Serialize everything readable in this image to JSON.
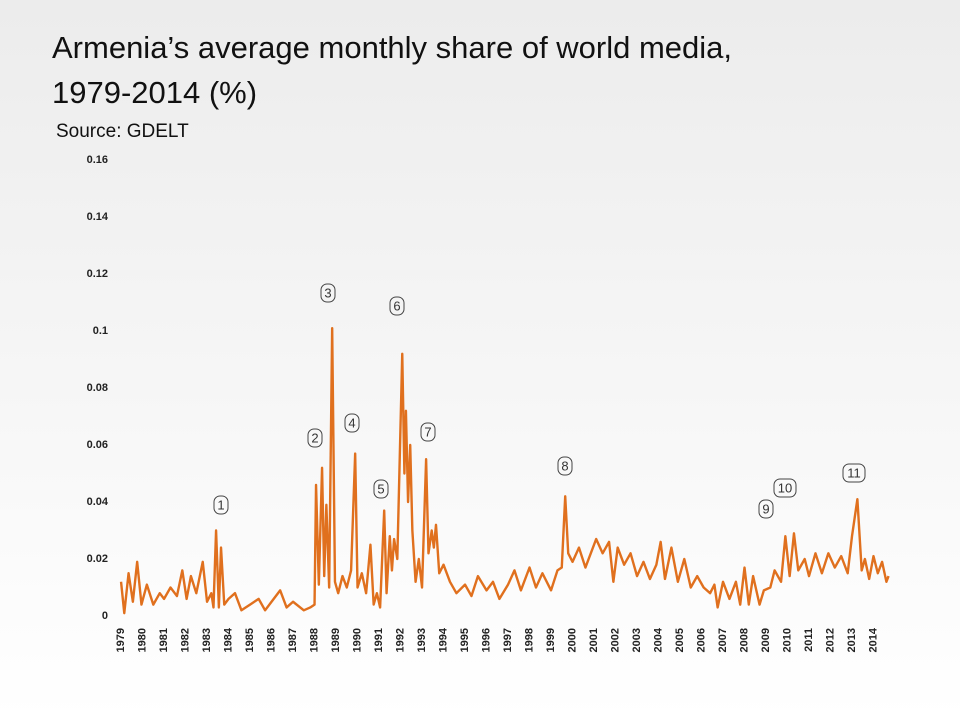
{
  "chart_data": {
    "type": "line",
    "title": [
      "Armenia’s average monthly share of world media,",
      "1979-2014 (%)"
    ],
    "subtitle": "Source: GDELT",
    "color": "#e0701e",
    "grid": false,
    "xlim": [
      1978.5,
      2015
    ],
    "ylim": [
      0,
      0.16
    ],
    "yticks": [
      0,
      0.02,
      0.04,
      0.06,
      0.08,
      0.1,
      0.12,
      0.14,
      0.16
    ],
    "xticks": [
      1979,
      1980,
      1981,
      1982,
      1983,
      1984,
      1985,
      1986,
      1987,
      1988,
      1989,
      1990,
      1991,
      1992,
      1993,
      1994,
      1995,
      1996,
      1997,
      1998,
      1999,
      2000,
      2001,
      2002,
      2003,
      2004,
      2005,
      2006,
      2007,
      2008,
      2009,
      2010,
      2011,
      2012,
      2013,
      2014
    ],
    "annotations": [
      "1",
      "2",
      "3",
      "4",
      "5",
      "6",
      "7",
      "8",
      "9",
      "10",
      "11"
    ],
    "x": [
      1979.0,
      1979.15,
      1979.35,
      1979.55,
      1979.75,
      1979.95,
      1980.2,
      1980.5,
      1980.8,
      1981.0,
      1981.3,
      1981.6,
      1981.85,
      1982.05,
      1982.25,
      1982.5,
      1982.8,
      1983.0,
      1983.2,
      1983.3,
      1983.42,
      1983.55,
      1983.65,
      1983.8,
      1984.0,
      1984.3,
      1984.6,
      1985.0,
      1985.4,
      1985.7,
      1986.0,
      1986.4,
      1986.7,
      1987.0,
      1987.5,
      1987.8,
      1988.0,
      1988.07,
      1988.2,
      1988.35,
      1988.45,
      1988.55,
      1988.68,
      1988.82,
      1988.95,
      1989.1,
      1989.3,
      1989.5,
      1989.7,
      1989.89,
      1990.0,
      1990.2,
      1990.4,
      1990.6,
      1990.75,
      1990.9,
      1991.05,
      1991.24,
      1991.35,
      1991.5,
      1991.6,
      1991.7,
      1991.85,
      1992.08,
      1992.18,
      1992.25,
      1992.35,
      1992.45,
      1992.55,
      1992.7,
      1992.85,
      1993.0,
      1993.19,
      1993.3,
      1993.45,
      1993.55,
      1993.65,
      1993.8,
      1994.0,
      1994.3,
      1994.6,
      1995.0,
      1995.3,
      1995.6,
      1996.0,
      1996.3,
      1996.6,
      1997.0,
      1997.3,
      1997.6,
      1998.0,
      1998.3,
      1998.6,
      1999.0,
      1999.3,
      1999.5,
      1999.66,
      1999.8,
      2000.0,
      2000.3,
      2000.6,
      2000.9,
      2001.1,
      2001.4,
      2001.7,
      2001.9,
      2002.1,
      2002.4,
      2002.7,
      2003.0,
      2003.3,
      2003.6,
      2003.9,
      2004.1,
      2004.3,
      2004.6,
      2004.9,
      2005.2,
      2005.5,
      2005.8,
      2006.1,
      2006.4,
      2006.6,
      2006.75,
      2007.0,
      2007.3,
      2007.6,
      2007.8,
      2008.0,
      2008.2,
      2008.4,
      2008.7,
      2008.9,
      2009.2,
      2009.4,
      2009.7,
      2009.9,
      2010.1,
      2010.3,
      2010.5,
      2010.8,
      2011.0,
      2011.3,
      2011.6,
      2011.9,
      2012.2,
      2012.5,
      2012.8,
      2013.0,
      2013.25,
      2013.45,
      2013.6,
      2013.8,
      2014.0,
      2014.2,
      2014.4,
      2014.6,
      2014.7
    ],
    "values": [
      0.012,
      0.001,
      0.015,
      0.005,
      0.019,
      0.004,
      0.011,
      0.004,
      0.008,
      0.006,
      0.01,
      0.007,
      0.016,
      0.006,
      0.014,
      0.008,
      0.019,
      0.005,
      0.008,
      0.003,
      0.03,
      0.003,
      0.024,
      0.004,
      0.006,
      0.008,
      0.002,
      0.004,
      0.006,
      0.002,
      0.005,
      0.009,
      0.003,
      0.005,
      0.002,
      0.003,
      0.004,
      0.046,
      0.011,
      0.052,
      0.014,
      0.039,
      0.01,
      0.101,
      0.012,
      0.008,
      0.014,
      0.01,
      0.016,
      0.057,
      0.01,
      0.015,
      0.008,
      0.025,
      0.004,
      0.008,
      0.003,
      0.037,
      0.008,
      0.028,
      0.016,
      0.027,
      0.02,
      0.092,
      0.05,
      0.072,
      0.04,
      0.06,
      0.03,
      0.012,
      0.02,
      0.01,
      0.055,
      0.022,
      0.03,
      0.024,
      0.032,
      0.015,
      0.018,
      0.012,
      0.008,
      0.011,
      0.007,
      0.014,
      0.009,
      0.012,
      0.006,
      0.011,
      0.016,
      0.009,
      0.017,
      0.01,
      0.015,
      0.009,
      0.016,
      0.017,
      0.042,
      0.022,
      0.019,
      0.024,
      0.017,
      0.023,
      0.027,
      0.022,
      0.026,
      0.012,
      0.024,
      0.018,
      0.022,
      0.014,
      0.019,
      0.013,
      0.018,
      0.026,
      0.013,
      0.024,
      0.012,
      0.02,
      0.01,
      0.014,
      0.01,
      0.008,
      0.011,
      0.003,
      0.012,
      0.006,
      0.012,
      0.004,
      0.017,
      0.004,
      0.014,
      0.004,
      0.009,
      0.01,
      0.016,
      0.012,
      0.028,
      0.014,
      0.029,
      0.016,
      0.02,
      0.014,
      0.022,
      0.015,
      0.022,
      0.017,
      0.021,
      0.015,
      0.028,
      0.041,
      0.016,
      0.02,
      0.013,
      0.021,
      0.015,
      0.019,
      0.012,
      0.014
    ]
  }
}
